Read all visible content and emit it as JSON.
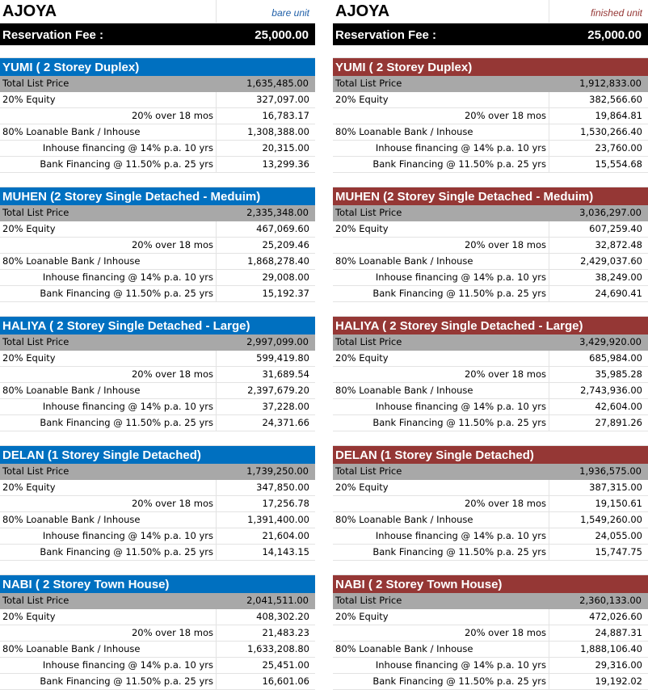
{
  "left": {
    "title": "AJOYA",
    "unit_label": "bare unit",
    "unit_label_color": "#1f5fa8",
    "header_color": "#0070c0",
    "fee_label": "Reservation Fee :",
    "fee_value": "25,000.00",
    "sections": [
      {
        "name": "YUMI ( 2 Storey Duplex)",
        "rows": [
          {
            "label": "Total List Price",
            "value": "1,635,485.00"
          },
          {
            "label": "20% Equity",
            "value": "327,097.00"
          },
          {
            "label": "20% over 18 mos",
            "value": "16,783.17"
          },
          {
            "label": "80% Loanable Bank / Inhouse",
            "value": "1,308,388.00"
          },
          {
            "label": "Inhouse financing @ 14% p.a. 10 yrs",
            "value": "20,315.00"
          },
          {
            "label": "Bank Financing  @ 11.50% p.a. 25 yrs",
            "value": "13,299.36"
          }
        ]
      },
      {
        "name": "MUHEN (2 Storey Single Detached - Meduim)",
        "rows": [
          {
            "label": "Total List Price",
            "value": "2,335,348.00"
          },
          {
            "label": "20% Equity",
            "value": "467,069.60"
          },
          {
            "label": "20% over 18 mos",
            "value": "25,209.46"
          },
          {
            "label": "80% Loanable Bank / Inhouse",
            "value": "1,868,278.40"
          },
          {
            "label": "Inhouse financing @ 14% p.a. 10 yrs",
            "value": "29,008.00"
          },
          {
            "label": "Bank Financing  @ 11.50% p.a. 25 yrs",
            "value": "15,192.37"
          }
        ]
      },
      {
        "name": "HALIYA ( 2 Storey Single Detached - Large)",
        "rows": [
          {
            "label": "Total List Price",
            "value": "2,997,099.00"
          },
          {
            "label": "20% Equity",
            "value": "599,419.80"
          },
          {
            "label": "20% over 18 mos",
            "value": "31,689.54"
          },
          {
            "label": "80% Loanable Bank / Inhouse",
            "value": "2,397,679.20"
          },
          {
            "label": "Inhouse financing @ 14% p.a. 10 yrs",
            "value": "37,228.00"
          },
          {
            "label": "Bank Financing  @ 11.50% p.a. 25 yrs",
            "value": "24,371.66"
          }
        ]
      },
      {
        "name": "DELAN (1 Storey Single Detached)",
        "rows": [
          {
            "label": "Total List Price",
            "value": "1,739,250.00"
          },
          {
            "label": "20% Equity",
            "value": "347,850.00"
          },
          {
            "label": "20% over 18 mos",
            "value": "17,256.78"
          },
          {
            "label": "80% Loanable Bank / Inhouse",
            "value": "1,391,400.00"
          },
          {
            "label": "Inhouse financing @ 14% p.a. 10 yrs",
            "value": "21,604.00"
          },
          {
            "label": "Bank Financing  @ 11.50% p.a. 25 yrs",
            "value": "14,143.15"
          }
        ]
      },
      {
        "name": "NABI ( 2 Storey Town House)",
        "rows": [
          {
            "label": "Total List Price",
            "value": "2,041,511.00"
          },
          {
            "label": "20% Equity",
            "value": "408,302.20"
          },
          {
            "label": "20% over 18 mos",
            "value": "21,483.23"
          },
          {
            "label": "80% Loanable Bank / Inhouse",
            "value": "1,633,208.80"
          },
          {
            "label": "Inhouse financing @ 14% p.a. 10 yrs",
            "value": "25,451.00"
          },
          {
            "label": "Bank Financing  @ 11.50% p.a. 25 yrs",
            "value": "16,601.06"
          }
        ]
      }
    ]
  },
  "right": {
    "title": "AJOYA",
    "unit_label": "finished unit",
    "unit_label_color": "#953735",
    "header_color": "#953735",
    "fee_label": "Reservation Fee :",
    "fee_value": "25,000.00",
    "sections": [
      {
        "name": "YUMI ( 2 Storey Duplex)",
        "rows": [
          {
            "label": "Total List Price",
            "value": "1,912,833.00"
          },
          {
            "label": "20% Equity",
            "value": "382,566.60"
          },
          {
            "label": "20% over 18 mos",
            "value": "19,864.81"
          },
          {
            "label": "80% Loanable Bank / Inhouse",
            "value": "1,530,266.40"
          },
          {
            "label": "Inhouse financing @ 14% p.a. 10 yrs",
            "value": "23,760.00"
          },
          {
            "label": "Bank Financing  @ 11.50% p.a. 25 yrs",
            "value": "15,554.68"
          }
        ]
      },
      {
        "name": "MUHEN (2 Storey Single Detached - Meduim)",
        "rows": [
          {
            "label": "Total List Price",
            "value": "3,036,297.00"
          },
          {
            "label": "20% Equity",
            "value": "607,259.40"
          },
          {
            "label": "20% over 18 mos",
            "value": "32,872.48"
          },
          {
            "label": "80% Loanable Bank / Inhouse",
            "value": "2,429,037.60"
          },
          {
            "label": "Inhouse financing @ 14% p.a. 10 yrs",
            "value": "38,249.00"
          },
          {
            "label": "Bank Financing  @ 11.50% p.a. 25 yrs",
            "value": "24,690.41"
          }
        ]
      },
      {
        "name": "HALIYA ( 2 Storey Single Detached - Large)",
        "rows": [
          {
            "label": "Total List Price",
            "value": "3,429,920.00"
          },
          {
            "label": "20% Equity",
            "value": "685,984.00"
          },
          {
            "label": "20% over 18 mos",
            "value": "35,985.28"
          },
          {
            "label": "80% Loanable Bank / Inhouse",
            "value": "2,743,936.00"
          },
          {
            "label": "Inhouse financing @ 14% p.a. 10 yrs",
            "value": "42,604.00"
          },
          {
            "label": "Bank Financing  @ 11.50% p.a. 25 yrs",
            "value": "27,891.26"
          }
        ]
      },
      {
        "name": "DELAN (1 Storey Single Detached)",
        "rows": [
          {
            "label": "Total List Price",
            "value": "1,936,575.00"
          },
          {
            "label": "20% Equity",
            "value": "387,315.00"
          },
          {
            "label": "20% over 18 mos",
            "value": "19,150.61"
          },
          {
            "label": "80% Loanable Bank / Inhouse",
            "value": "1,549,260.00"
          },
          {
            "label": "Inhouse financing @ 14% p.a. 10 yrs",
            "value": "24,055.00"
          },
          {
            "label": "Bank Financing  @ 11.50% p.a. 25 yrs",
            "value": "15,747.75"
          }
        ]
      },
      {
        "name": "NABI ( 2 Storey Town House)",
        "rows": [
          {
            "label": "Total List Price",
            "value": "2,360,133.00"
          },
          {
            "label": "20% Equity",
            "value": "472,026.60"
          },
          {
            "label": "20% over 18 mos",
            "value": "24,887.31"
          },
          {
            "label": "80% Loanable Bank / Inhouse",
            "value": "1,888,106.40"
          },
          {
            "label": "Inhouse financing @ 14% p.a. 10 yrs",
            "value": "29,316.00"
          },
          {
            "label": "Bank Financing  @ 11.50% p.a. 25 yrs",
            "value": "19,192.02"
          }
        ]
      }
    ]
  }
}
